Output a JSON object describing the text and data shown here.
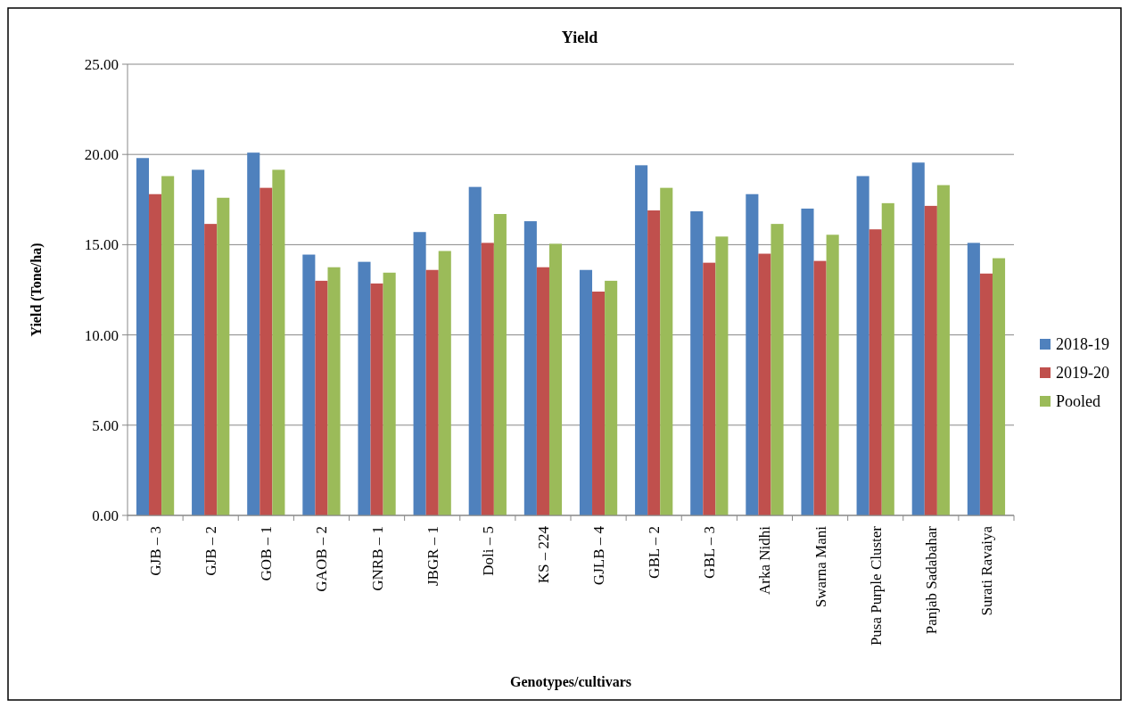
{
  "chart_data": {
    "type": "bar",
    "title": "Yield",
    "xlabel": "Genotypes/cultivars",
    "ylabel": "Yield (Tone/ha)",
    "categories": [
      "GJB – 3",
      "GJB – 2",
      "GOB – 1",
      "GAOB – 2",
      "GNRB – 1",
      "JBGR – 1",
      "Doli – 5",
      "KS – 224",
      "GJLB – 4",
      "GBL – 2",
      "GBL – 3",
      "Arka Nidhi",
      "Swarna Mani",
      "Pusa Purple Cluster",
      "Panjab Sadabahar",
      "Surati Ravaiya"
    ],
    "series": [
      {
        "name": "2018-19",
        "color": "#4f81bd",
        "values": [
          19.8,
          19.15,
          20.1,
          14.45,
          14.05,
          15.7,
          18.2,
          16.3,
          13.6,
          19.4,
          16.85,
          17.8,
          17.0,
          18.8,
          19.55,
          15.1
        ]
      },
      {
        "name": "2019-20",
        "color": "#c0504d",
        "values": [
          17.8,
          16.15,
          18.15,
          13.0,
          12.85,
          13.6,
          15.1,
          13.75,
          12.4,
          16.9,
          14.0,
          14.5,
          14.1,
          15.85,
          17.15,
          13.4
        ]
      },
      {
        "name": "Pooled",
        "color": "#9bbb59",
        "values": [
          18.8,
          17.6,
          19.15,
          13.75,
          13.45,
          14.65,
          16.7,
          15.05,
          13.0,
          18.15,
          15.45,
          16.15,
          15.55,
          17.3,
          18.3,
          14.25
        ]
      }
    ],
    "ylim": [
      0,
      25
    ],
    "yticks": [
      {
        "value": 0,
        "label": "0.00"
      },
      {
        "value": 5,
        "label": "5.00"
      },
      {
        "value": 10,
        "label": "10.00"
      },
      {
        "value": 15,
        "label": "15.00"
      },
      {
        "value": 20,
        "label": "20.00"
      },
      {
        "value": 25,
        "label": "25.00"
      }
    ],
    "grid": "y",
    "legend": "right"
  }
}
